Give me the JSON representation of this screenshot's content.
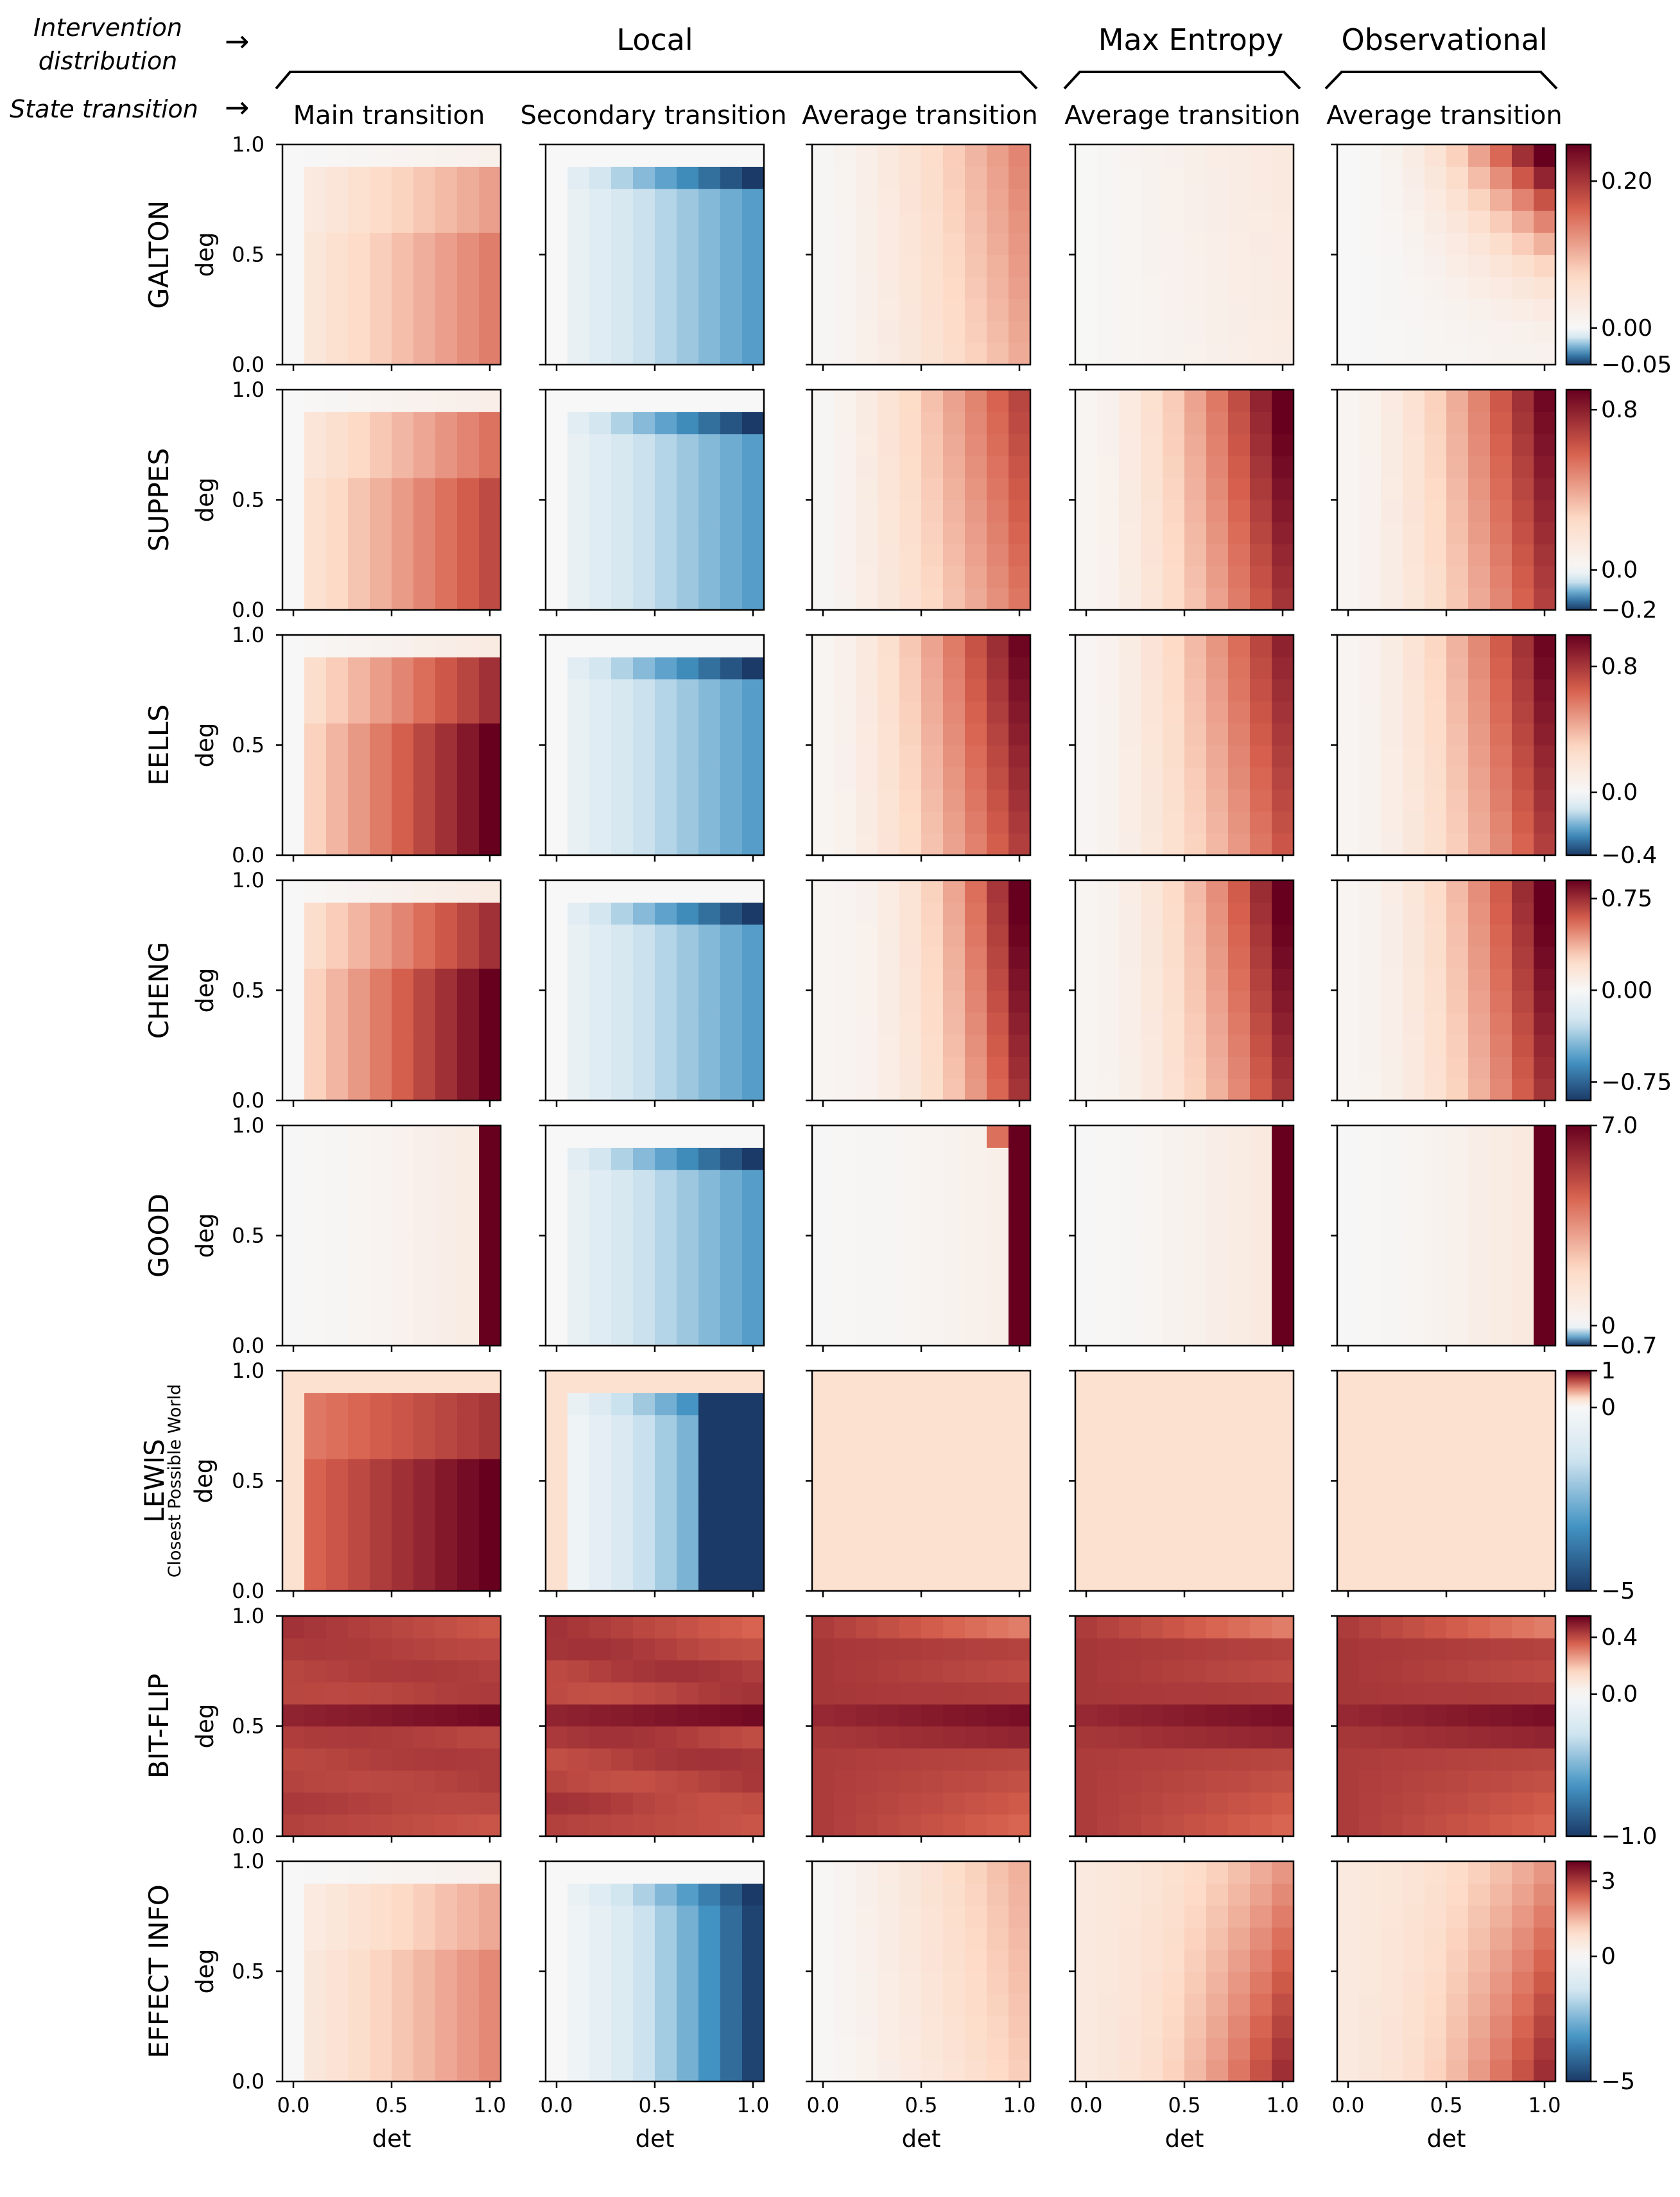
{
  "header": {
    "intervention_label": [
      "Intervention",
      "distribution"
    ],
    "state_label": "State transition",
    "arrow": "→",
    "groups": [
      "Local",
      "Max Entropy",
      "Observational"
    ],
    "columns": [
      "Main transition",
      "Secondary transition",
      "Average transition",
      "Average transition",
      "Average transition"
    ]
  },
  "axes": {
    "xlabel": "det",
    "ylabel": "deg",
    "xticks": [
      "0.0",
      "0.5",
      "1.0"
    ],
    "yticks": [
      "0.0",
      "0.5",
      "1.0"
    ]
  },
  "colors": {
    "neg_max": "#1b3a67",
    "neg_mid": "#4393c3",
    "neg_light": "#d1e5f0",
    "white": "#f7f7f7",
    "pos_light": "#fddbc7",
    "pos_mid": "#d6604d",
    "pos_max": "#67001f"
  },
  "chart_data": [
    {
      "type": "heatmap",
      "name": "GALTON",
      "subtitle": "",
      "vmin": -0.05,
      "vmax": 0.25,
      "cbar_ticks": [
        "0.20",
        "0.00",
        "−0.05"
      ],
      "cbar_tick_values": [
        0.2,
        0.0,
        -0.05
      ],
      "panels": [
        {
          "pattern": "step",
          "pos": true,
          "hi": 0.14
        },
        {
          "pattern": "stepneg",
          "lo": -0.05
        },
        {
          "pattern": "smooth",
          "hi": 0.13,
          "ex": 1.3
        },
        {
          "pattern": "smooth",
          "hi": 0.035,
          "ex": 1.0
        },
        {
          "pattern": "corner",
          "hi": 0.25,
          "ex": 2.2
        }
      ]
    },
    {
      "type": "heatmap",
      "name": "SUPPES",
      "subtitle": "",
      "vmin": -0.2,
      "vmax": 0.9,
      "cbar_ticks": [
        "0.8",
        "0.0",
        "−0.2"
      ],
      "cbar_tick_values": [
        0.8,
        0.0,
        -0.2
      ],
      "panels": [
        {
          "pattern": "step",
          "pos": true,
          "hi": 0.65
        },
        {
          "pattern": "stepneg",
          "lo": -0.2
        },
        {
          "pattern": "smooth",
          "hi": 0.65,
          "ex": 1.3
        },
        {
          "pattern": "smooth",
          "hi": 0.9,
          "ex": 1.5
        },
        {
          "pattern": "smooth",
          "hi": 0.85,
          "ex": 1.5
        }
      ]
    },
    {
      "type": "heatmap",
      "name": "EELLS",
      "subtitle": "",
      "vmin": -0.4,
      "vmax": 1.0,
      "cbar_ticks": [
        "0.8",
        "0.0",
        "−0.4"
      ],
      "cbar_tick_values": [
        0.8,
        0.0,
        -0.4
      ],
      "panels": [
        {
          "pattern": "step",
          "pos": true,
          "hi": 1.0
        },
        {
          "pattern": "stepneg",
          "lo": -0.4
        },
        {
          "pattern": "smooth",
          "hi": 0.95,
          "ex": 1.4
        },
        {
          "pattern": "smooth",
          "hi": 0.85,
          "ex": 1.5
        },
        {
          "pattern": "smooth",
          "hi": 0.95,
          "ex": 1.6
        }
      ]
    },
    {
      "type": "heatmap",
      "name": "CHENG",
      "subtitle": "",
      "vmin": -0.9,
      "vmax": 0.9,
      "cbar_ticks": [
        "0.75",
        "0.00",
        "−0.75"
      ],
      "cbar_tick_values": [
        0.75,
        0.0,
        -0.75
      ],
      "panels": [
        {
          "pattern": "step",
          "pos": true,
          "hi": 0.9
        },
        {
          "pattern": "stepneg",
          "lo": -0.9
        },
        {
          "pattern": "smooth",
          "hi": 0.9,
          "ex": 2.2
        },
        {
          "pattern": "smooth",
          "hi": 0.9,
          "ex": 1.8
        },
        {
          "pattern": "smooth",
          "hi": 0.9,
          "ex": 1.8
        }
      ]
    },
    {
      "type": "heatmap",
      "name": "GOOD",
      "subtitle": "",
      "vmin": -0.7,
      "vmax": 7.0,
      "cbar_ticks": [
        "7.0",
        "0",
        "−0.7"
      ],
      "cbar_tick_values": [
        7.0,
        0.0,
        -0.7
      ],
      "panels": [
        {
          "pattern": "good",
          "last": 7.0,
          "hi": 1.3
        },
        {
          "pattern": "stepneg",
          "lo": -0.7
        },
        {
          "pattern": "good",
          "last": 7.0,
          "hi": 0.9
        },
        {
          "pattern": "good",
          "last": 7.0,
          "hi": 1.6
        },
        {
          "pattern": "good",
          "last": 7.0,
          "hi": 1.6
        }
      ]
    },
    {
      "type": "heatmap",
      "name": "LEWIS",
      "subtitle": "Closest Possible World",
      "vmin": -5,
      "vmax": 1,
      "cbar_ticks": [
        "1",
        "0",
        "−5"
      ],
      "cbar_tick_values": [
        1,
        0,
        -5
      ],
      "panels": [
        {
          "pattern": "lewis_main"
        },
        {
          "pattern": "lewis_sec"
        },
        {
          "pattern": "flat",
          "v": 0.22
        },
        {
          "pattern": "flat",
          "v": 0.22
        },
        {
          "pattern": "flat",
          "v": 0.22
        }
      ]
    },
    {
      "type": "heatmap",
      "name": "BIT-FLIP",
      "subtitle": "",
      "vmin": -1.0,
      "vmax": 0.55,
      "cbar_ticks": [
        "0.4",
        "0.0",
        "−1.0"
      ],
      "cbar_tick_values": [
        0.4,
        0.0,
        -1.0
      ],
      "panels": [
        {
          "pattern": "bitflip",
          "var": 0.3
        },
        {
          "pattern": "bitflip",
          "var": 0.6
        },
        {
          "pattern": "bitflip2"
        },
        {
          "pattern": "bitflip2"
        },
        {
          "pattern": "bitflip2"
        }
      ]
    },
    {
      "type": "heatmap",
      "name": "EFFECT INFO",
      "subtitle": "",
      "vmin": -5,
      "vmax": 3.8,
      "cbar_ticks": [
        "3",
        "0",
        "−5"
      ],
      "cbar_tick_values": [
        3,
        0,
        -5
      ],
      "panels": [
        {
          "pattern": "step",
          "pos": true,
          "hi": 2.0
        },
        {
          "pattern": "effneg"
        },
        {
          "pattern": "smooth",
          "hi": 1.5,
          "ex": 1.2
        },
        {
          "pattern": "effmax"
        },
        {
          "pattern": "effmax"
        }
      ]
    }
  ]
}
